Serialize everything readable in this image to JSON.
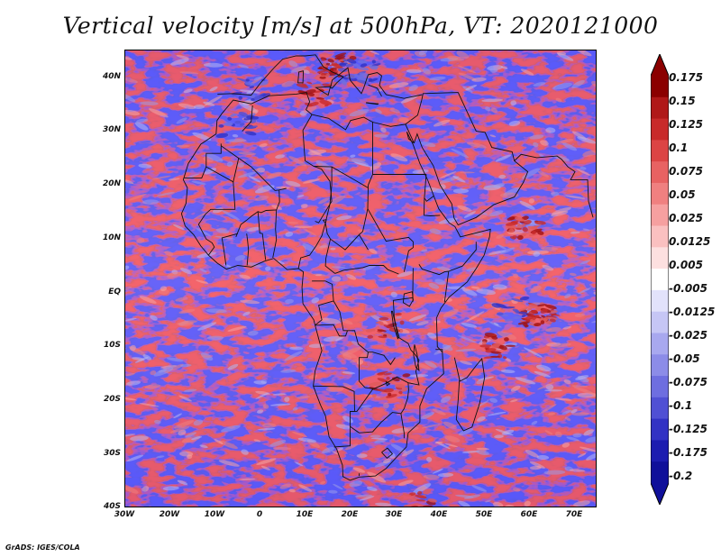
{
  "title": "Vertical velocity [m/s] at 500hPa, VT: 2020121000",
  "footer": "GrADS: IGES/COLA",
  "map": {
    "lon_range": [
      -30,
      75
    ],
    "lat_range": [
      -40,
      45
    ],
    "lat_ticks": [
      "40N",
      "30N",
      "20N",
      "10N",
      "EQ",
      "10S",
      "20S",
      "30S",
      "40S"
    ],
    "lon_ticks": [
      "30W",
      "20W",
      "10W",
      "0",
      "10E",
      "20E",
      "30E",
      "40E",
      "50E",
      "60E",
      "70E"
    ]
  },
  "colorbar": {
    "labels": [
      "0.175",
      "0.15",
      "0.125",
      "0.1",
      "0.075",
      "0.05",
      "0.025",
      "0.0125",
      "0.005",
      "-0.005",
      "-0.0125",
      "-0.025",
      "-0.05",
      "-0.075",
      "-0.1",
      "-0.125",
      "-0.175",
      "-0.2"
    ],
    "colors": [
      "#8b0000",
      "#b01818",
      "#c82a2a",
      "#dc4444",
      "#e86262",
      "#f08080",
      "#f6a0a0",
      "#fac0c0",
      "#fde0e0",
      "#ffffff",
      "#e2e2fb",
      "#c6c6f5",
      "#a8a8ef",
      "#8c8ce8",
      "#6e6ee0",
      "#5050d4",
      "#3232c4",
      "#1c1cb0",
      "#10109a"
    ]
  }
}
